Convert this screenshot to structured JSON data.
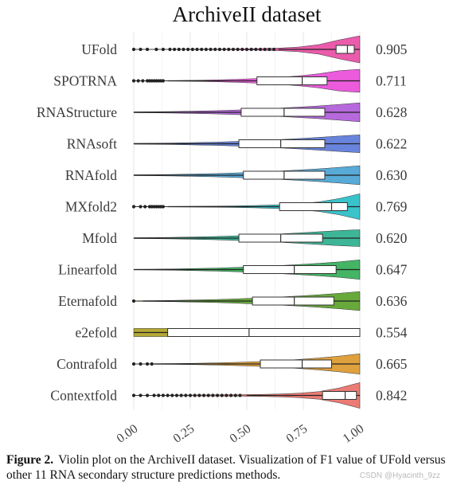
{
  "figure": {
    "caption_lead": "Figure 2.",
    "caption_text": "Violin plot on the ArchiveII dataset. Visualization of F1 value of UFold versus other 11 RNA secondary structure predictions methods.",
    "watermark": "CSDN @Hyacinth_9zz"
  },
  "chart_data": {
    "type": "violin",
    "title": "ArchiveII dataset",
    "xlabel": "",
    "ylabel": "",
    "xlim": [
      0,
      1
    ],
    "x_ticks": [
      "0.00",
      "0.25",
      "0.50",
      "0.75",
      "1.00"
    ],
    "grid": true,
    "orientation": "horizontal",
    "series": [
      {
        "name": "UFold",
        "mean_label": "0.905",
        "color": "#e83e9c",
        "q1": 0.895,
        "median": 0.945,
        "q3": 0.975,
        "whisker_low": 0.64,
        "whisker_high": 1.0,
        "outliers": [
          0.0,
          0.03,
          0.06,
          0.1,
          0.13,
          0.16,
          0.18,
          0.2,
          0.22,
          0.24,
          0.26,
          0.28,
          0.3,
          0.32,
          0.34,
          0.36,
          0.38,
          0.4,
          0.42,
          0.44,
          0.46,
          0.48,
          0.5,
          0.52,
          0.54,
          0.56,
          0.58,
          0.6,
          0.62
        ],
        "density": [
          0,
          0.01,
          0.01,
          0.02,
          0.02,
          0.03,
          0.05,
          0.09,
          0.17,
          0.35,
          0.7,
          1.0
        ]
      },
      {
        "name": "SPOTRNA",
        "mean_label": "0.711",
        "color": "#e83ed6",
        "q1": 0.545,
        "median": 0.745,
        "q3": 0.855,
        "whisker_low": 0.15,
        "whisker_high": 1.0,
        "outliers": [
          0.0,
          0.02,
          0.04,
          0.06,
          0.07,
          0.08,
          0.09,
          0.1,
          0.11,
          0.12,
          0.13
        ],
        "density": [
          0.01,
          0.01,
          0.02,
          0.04,
          0.07,
          0.11,
          0.17,
          0.25,
          0.36,
          0.52,
          0.75,
          0.85
        ]
      },
      {
        "name": "RNAStructure",
        "mean_label": "0.628",
        "color": "#a94fd6",
        "q1": 0.475,
        "median": 0.665,
        "q3": 0.845,
        "whisker_low": 0.0,
        "whisker_high": 1.0,
        "outliers": [],
        "density": [
          0.03,
          0.04,
          0.06,
          0.09,
          0.12,
          0.17,
          0.23,
          0.3,
          0.38,
          0.47,
          0.58,
          0.7
        ]
      },
      {
        "name": "RNAsoft",
        "mean_label": "0.622",
        "color": "#4f6fd6",
        "q1": 0.465,
        "median": 0.65,
        "q3": 0.845,
        "whisker_low": 0.0,
        "whisker_high": 1.0,
        "outliers": [],
        "density": [
          0.03,
          0.04,
          0.06,
          0.09,
          0.12,
          0.17,
          0.23,
          0.3,
          0.38,
          0.47,
          0.57,
          0.66
        ]
      },
      {
        "name": "RNAfold",
        "mean_label": "0.630",
        "color": "#3b9bd0",
        "q1": 0.485,
        "median": 0.665,
        "q3": 0.845,
        "whisker_low": 0.0,
        "whisker_high": 1.0,
        "outliers": [],
        "density": [
          0.03,
          0.04,
          0.06,
          0.09,
          0.12,
          0.17,
          0.23,
          0.3,
          0.38,
          0.47,
          0.58,
          0.7
        ]
      },
      {
        "name": "MXfold2",
        "mean_label": "0.769",
        "color": "#16b8c2",
        "q1": 0.645,
        "median": 0.875,
        "q3": 0.945,
        "whisker_low": 0.15,
        "whisker_high": 1.0,
        "outliers": [
          0.0,
          0.03,
          0.05,
          0.07,
          0.08,
          0.09,
          0.1,
          0.11,
          0.12,
          0.13
        ],
        "density": [
          0.01,
          0.01,
          0.02,
          0.03,
          0.04,
          0.06,
          0.09,
          0.14,
          0.22,
          0.35,
          0.6,
          0.95
        ]
      },
      {
        "name": "Mfold",
        "mean_label": "0.620",
        "color": "#1aa985",
        "q1": 0.465,
        "median": 0.65,
        "q3": 0.835,
        "whisker_low": 0.0,
        "whisker_high": 1.0,
        "outliers": [],
        "density": [
          0.03,
          0.04,
          0.06,
          0.09,
          0.12,
          0.17,
          0.23,
          0.3,
          0.38,
          0.47,
          0.56,
          0.62
        ]
      },
      {
        "name": "Linearfold",
        "mean_label": "0.647",
        "color": "#22a84a",
        "q1": 0.485,
        "median": 0.71,
        "q3": 0.895,
        "whisker_low": 0.0,
        "whisker_high": 1.0,
        "outliers": [],
        "density": [
          0.02,
          0.03,
          0.05,
          0.08,
          0.11,
          0.16,
          0.22,
          0.29,
          0.37,
          0.46,
          0.57,
          0.72
        ]
      },
      {
        "name": "Eternafold",
        "mean_label": "0.636",
        "color": "#4e9a1a",
        "q1": 0.525,
        "median": 0.71,
        "q3": 0.885,
        "whisker_low": 0.04,
        "whisker_high": 1.0,
        "outliers": [
          0.0
        ],
        "density": [
          0.02,
          0.03,
          0.05,
          0.08,
          0.11,
          0.16,
          0.22,
          0.29,
          0.37,
          0.46,
          0.57,
          0.7
        ]
      },
      {
        "name": "e2efold",
        "mean_label": "0.554",
        "color": "#a89a10",
        "q1": 0.15,
        "median": 0.51,
        "q3": 1.0,
        "whisker_low": 0.0,
        "whisker_high": 1.0,
        "outliers": [],
        "density": [
          0.3,
          0.3,
          0.3,
          0.3,
          0.3,
          0.3,
          0.3,
          0.3,
          0.3,
          0.3,
          0.3,
          0.3
        ]
      },
      {
        "name": "Contrafold",
        "mean_label": "0.665",
        "color": "#d9901c",
        "q1": 0.56,
        "median": 0.745,
        "q3": 0.875,
        "whisker_low": 0.09,
        "whisker_high": 1.0,
        "outliers": [
          0.0,
          0.03,
          0.06,
          0.08
        ],
        "density": [
          0.01,
          0.02,
          0.03,
          0.05,
          0.08,
          0.12,
          0.17,
          0.24,
          0.33,
          0.44,
          0.58,
          0.75
        ]
      },
      {
        "name": "Contextfold",
        "mean_label": "0.842",
        "color": "#e8645c",
        "q1": 0.835,
        "median": 0.935,
        "q3": 0.985,
        "whisker_low": 0.5,
        "whisker_high": 1.0,
        "outliers": [
          0.0,
          0.03,
          0.06,
          0.09,
          0.11,
          0.13,
          0.15,
          0.17,
          0.19,
          0.21,
          0.23,
          0.25,
          0.27,
          0.29,
          0.31,
          0.33,
          0.35,
          0.37,
          0.39,
          0.41,
          0.43,
          0.45,
          0.47
        ],
        "density": [
          0.01,
          0.01,
          0.02,
          0.03,
          0.04,
          0.05,
          0.07,
          0.1,
          0.16,
          0.28,
          0.55,
          0.95
        ]
      }
    ]
  }
}
